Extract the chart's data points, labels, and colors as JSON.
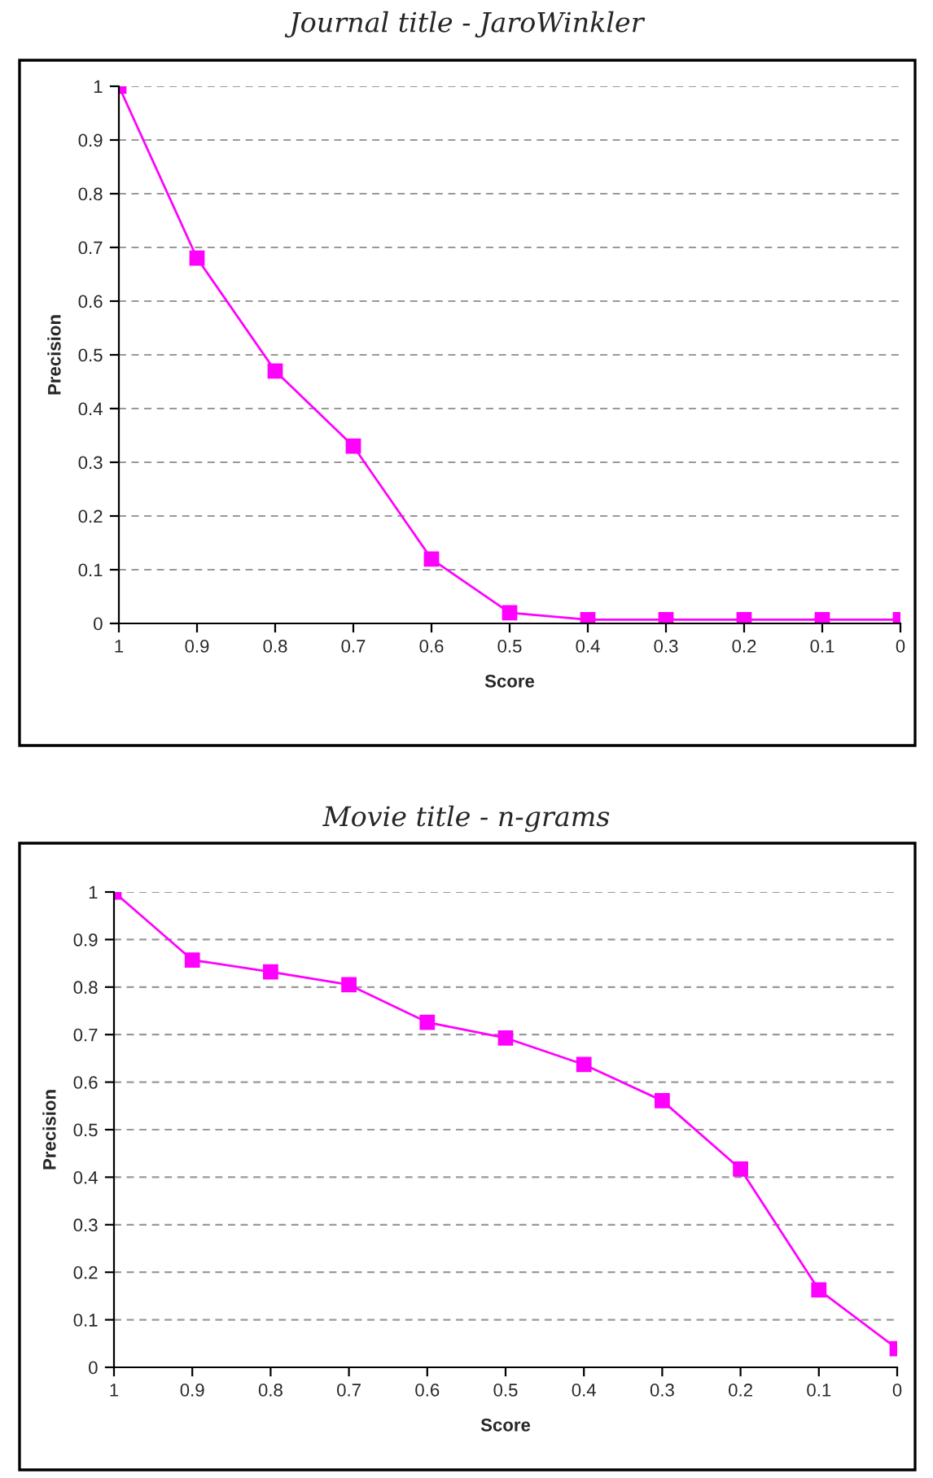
{
  "chart_data": [
    {
      "type": "line",
      "title": "Journal title - JaroWinkler",
      "xlabel": "Score",
      "ylabel": "Precision",
      "categories": [
        "1",
        "0.9",
        "0.8",
        "0.7",
        "0.6",
        "0.5",
        "0.4",
        "0.3",
        "0.2",
        "0.1",
        "0"
      ],
      "series": [
        {
          "color": "#ff00ff",
          "values": [
            1.0,
            0.68,
            0.47,
            0.33,
            0.12,
            0.02,
            0.007,
            0.007,
            0.007,
            0.007,
            0.007
          ]
        }
      ],
      "ylim": [
        0,
        1
      ],
      "yticks": [
        0,
        0.1,
        0.2,
        0.3,
        0.4,
        0.5,
        0.6,
        0.7,
        0.8,
        0.9,
        1
      ],
      "grid": "y",
      "marker": "square",
      "line_style": "solid",
      "legend": false
    },
    {
      "type": "line",
      "title": "Movie title - n-grams",
      "xlabel": "Score",
      "ylabel": "Precision",
      "categories": [
        "1",
        "0.9",
        "0.8",
        "0.7",
        "0.6",
        "0.5",
        "0.4",
        "0.3",
        "0.2",
        "0.1",
        "0"
      ],
      "series": [
        {
          "color": "#ff00ff",
          "values": [
            1.0,
            0.857,
            0.832,
            0.805,
            0.726,
            0.693,
            0.637,
            0.561,
            0.417,
            0.163,
            0.039
          ]
        }
      ],
      "ylim": [
        0,
        1
      ],
      "yticks": [
        0,
        0.1,
        0.2,
        0.3,
        0.4,
        0.5,
        0.6,
        0.7,
        0.8,
        0.9,
        1
      ],
      "grid": "y",
      "marker": "square",
      "line_style": "solid",
      "legend": false
    }
  ]
}
